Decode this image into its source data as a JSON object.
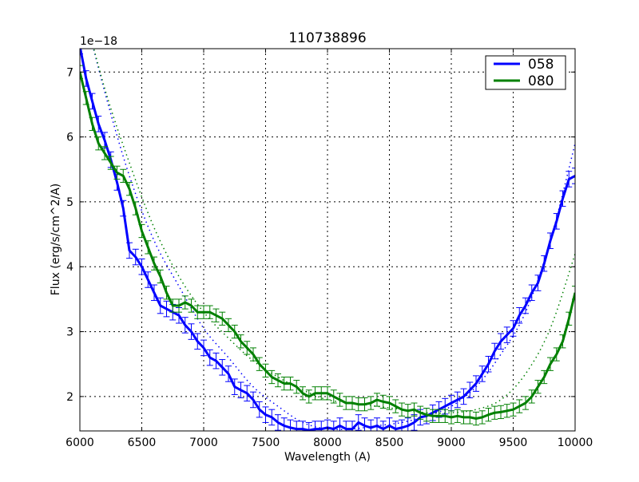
{
  "chart_data": {
    "type": "line",
    "title": "110738896",
    "xlabel": "Wavelength (A)",
    "ylabel": "Flux (erg/s/cm^2/A)",
    "y_offset_label": "1e−18",
    "xlim": [
      6000,
      10000
    ],
    "ylim": [
      1.47,
      7.36
    ],
    "y_scale": 1e-18,
    "xticks": [
      6000,
      6500,
      7000,
      7500,
      8000,
      8500,
      9000,
      9500,
      10000
    ],
    "yticks": [
      2,
      3,
      4,
      5,
      6,
      7
    ],
    "grid": true,
    "legend_position": "upper right",
    "legend": [
      "058",
      "080"
    ],
    "series": [
      {
        "name": "058",
        "color": "#0000ff",
        "x": [
          6000,
          6050,
          6100,
          6150,
          6200,
          6250,
          6300,
          6350,
          6400,
          6450,
          6500,
          6550,
          6600,
          6650,
          6700,
          6750,
          6800,
          6850,
          6900,
          6950,
          7000,
          7050,
          7100,
          7150,
          7200,
          7250,
          7300,
          7350,
          7400,
          7450,
          7500,
          7550,
          7600,
          7650,
          7700,
          7750,
          7800,
          7850,
          7900,
          7950,
          8000,
          8050,
          8100,
          8150,
          8200,
          8250,
          8300,
          8350,
          8400,
          8450,
          8500,
          8550,
          8600,
          8650,
          8700,
          8750,
          8800,
          8850,
          8900,
          8950,
          9000,
          9050,
          9100,
          9150,
          9200,
          9250,
          9300,
          9350,
          9400,
          9450,
          9500,
          9550,
          9600,
          9650,
          9700,
          9750,
          9800,
          9850,
          9900,
          9950,
          10000
        ],
        "y": [
          7.4,
          6.9,
          6.55,
          6.2,
          5.95,
          5.65,
          5.3,
          4.9,
          4.25,
          4.15,
          4.0,
          3.8,
          3.6,
          3.4,
          3.35,
          3.3,
          3.25,
          3.1,
          3.0,
          2.85,
          2.75,
          2.6,
          2.55,
          2.45,
          2.35,
          2.15,
          2.1,
          2.05,
          1.95,
          1.8,
          1.72,
          1.68,
          1.6,
          1.55,
          1.52,
          1.5,
          1.5,
          1.48,
          1.5,
          1.5,
          1.52,
          1.5,
          1.55,
          1.5,
          1.5,
          1.6,
          1.55,
          1.52,
          1.55,
          1.5,
          1.55,
          1.5,
          1.52,
          1.55,
          1.6,
          1.68,
          1.7,
          1.75,
          1.8,
          1.85,
          1.9,
          1.95,
          2.0,
          2.1,
          2.2,
          2.35,
          2.5,
          2.7,
          2.85,
          2.95,
          3.05,
          3.25,
          3.4,
          3.6,
          3.75,
          4.05,
          4.4,
          4.7,
          5.05,
          5.35,
          5.4
        ],
        "yerr": 0.12,
        "model": {
          "x": [
            6000,
            6200,
            6400,
            6600,
            6800,
            7000,
            7200,
            7400,
            7600,
            7800,
            8000,
            8200,
            8400,
            8600,
            8800,
            9000,
            9200,
            9400,
            9600,
            9800,
            10000
          ],
          "y": [
            8.2,
            6.7,
            5.4,
            4.4,
            3.7,
            3.05,
            2.6,
            2.15,
            1.85,
            1.6,
            1.5,
            1.5,
            1.55,
            1.6,
            1.7,
            1.85,
            2.15,
            2.65,
            3.3,
            4.4,
            5.9
          ]
        }
      },
      {
        "name": "080",
        "color": "#008000",
        "x": [
          6000,
          6050,
          6100,
          6150,
          6200,
          6250,
          6300,
          6350,
          6400,
          6450,
          6500,
          6550,
          6600,
          6650,
          6700,
          6750,
          6800,
          6850,
          6900,
          6950,
          7000,
          7050,
          7100,
          7150,
          7200,
          7250,
          7300,
          7350,
          7400,
          7450,
          7500,
          7550,
          7600,
          7650,
          7700,
          7750,
          7800,
          7850,
          7900,
          7950,
          8000,
          8050,
          8100,
          8150,
          8200,
          8250,
          8300,
          8350,
          8400,
          8450,
          8500,
          8550,
          8600,
          8650,
          8700,
          8750,
          8800,
          8850,
          8900,
          8950,
          9000,
          9050,
          9100,
          9150,
          9200,
          9250,
          9300,
          9350,
          9400,
          9450,
          9500,
          9550,
          9600,
          9650,
          9700,
          9750,
          9800,
          9850,
          9900,
          9950,
          10000
        ],
        "y": [
          7.0,
          6.6,
          6.2,
          5.9,
          5.75,
          5.6,
          5.45,
          5.4,
          5.2,
          4.9,
          4.55,
          4.3,
          4.05,
          3.85,
          3.6,
          3.4,
          3.4,
          3.45,
          3.4,
          3.3,
          3.3,
          3.3,
          3.25,
          3.2,
          3.1,
          3.0,
          2.85,
          2.75,
          2.65,
          2.5,
          2.4,
          2.3,
          2.25,
          2.2,
          2.2,
          2.15,
          2.05,
          2.0,
          2.05,
          2.05,
          2.05,
          2.0,
          1.95,
          1.9,
          1.9,
          1.88,
          1.88,
          1.9,
          1.95,
          1.92,
          1.9,
          1.85,
          1.8,
          1.78,
          1.8,
          1.75,
          1.72,
          1.7,
          1.7,
          1.7,
          1.68,
          1.7,
          1.68,
          1.68,
          1.66,
          1.68,
          1.72,
          1.75,
          1.76,
          1.78,
          1.8,
          1.85,
          1.9,
          2.0,
          2.15,
          2.3,
          2.5,
          2.65,
          2.85,
          3.2,
          3.6
        ],
        "yerr": 0.1,
        "model": {
          "x": [
            6000,
            6200,
            6400,
            6600,
            6800,
            7000,
            7200,
            7400,
            7600,
            7800,
            8000,
            8200,
            8400,
            8600,
            8800,
            9000,
            9200,
            9400,
            9600,
            9800,
            10000
          ],
          "y": [
            8.2,
            6.75,
            5.6,
            4.6,
            3.85,
            3.3,
            2.9,
            2.55,
            2.3,
            2.1,
            1.95,
            1.9,
            1.85,
            1.8,
            1.75,
            1.75,
            1.8,
            1.95,
            2.35,
            3.05,
            4.2
          ]
        }
      }
    ]
  }
}
